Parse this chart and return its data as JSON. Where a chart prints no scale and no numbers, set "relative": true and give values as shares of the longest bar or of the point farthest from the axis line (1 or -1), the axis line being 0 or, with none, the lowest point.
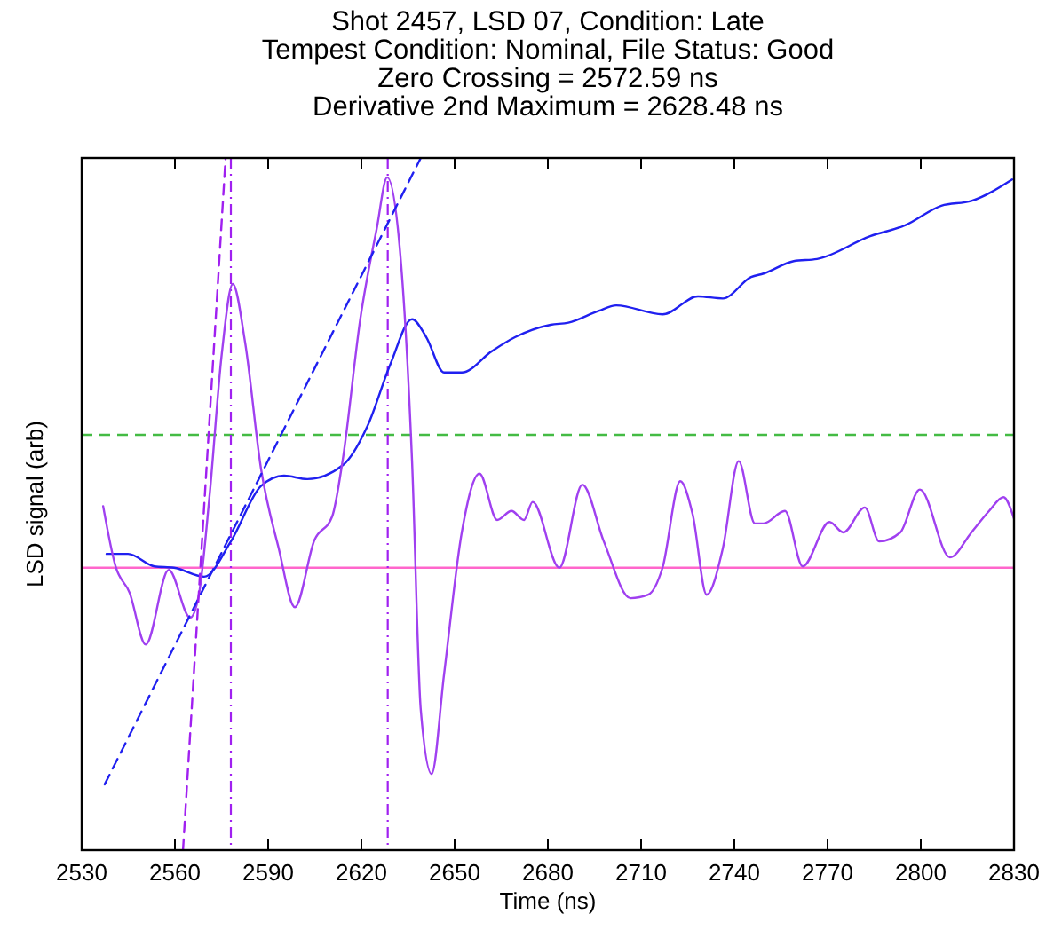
{
  "chart_data": {
    "type": "line",
    "title": "Shot 2457, LSD 07, Condition: Late",
    "subtitle": "Tempest Condition: Nominal, File Status: Good\nZero Crossing = 2572.59 ns\nDerivative 2nd Maximum = 2628.48 ns",
    "xlabel": "Time (ns)",
    "ylabel": "LSD signal (arb)",
    "relative": true,
    "xlim": [
      2530,
      2830
    ],
    "xticks": [
      2530,
      2560,
      2590,
      2620,
      2650,
      2680,
      2710,
      2740,
      2770,
      2800,
      2830
    ],
    "tick_labels": "x",
    "grid": false,
    "marker": "none",
    "series": [
      {
        "color": "#2020f0",
        "line_style": "solid",
        "x": [
          2538.0,
          2544.9,
          2553.4,
          2559.7,
          2569.4,
          2578.0,
          2587.7,
          2595.1,
          2602.6,
          2614.0,
          2622.0,
          2629.4,
          2636.3,
          2640.9,
          2646.6,
          2652.3,
          2662.0,
          2669.4,
          2680.9,
          2686.6,
          2696.3,
          2702.0,
          2716.9,
          2728.3,
          2736.3,
          2745.4,
          2749.4,
          2759.1,
          2766.6,
          2783.7,
          2795.1,
          2806.6,
          2816.3,
          2829.4
        ],
        "values": [
          0.428,
          0.428,
          0.41,
          0.408,
          0.395,
          0.446,
          0.526,
          0.541,
          0.536,
          0.556,
          0.613,
          0.703,
          0.767,
          0.741,
          0.69,
          0.69,
          0.721,
          0.741,
          0.759,
          0.762,
          0.779,
          0.787,
          0.774,
          0.8,
          0.797,
          0.828,
          0.833,
          0.851,
          0.854,
          0.887,
          0.903,
          0.931,
          0.938,
          0.969
        ]
      },
      {
        "color": "#a040f0",
        "line_style": "solid",
        "x": [
          2536.9,
          2540.9,
          2545.4,
          2550.6,
          2558.0,
          2564.9,
          2567.7,
          2571.1,
          2575.1,
          2578.6,
          2582.6,
          2587.7,
          2593.4,
          2598.6,
          2604.9,
          2610.6,
          2614.0,
          2619.7,
          2624.9,
          2628.3,
          2632.3,
          2636.3,
          2639.1,
          2642.6,
          2646.6,
          2652.3,
          2658.0,
          2663.7,
          2668.3,
          2672.3,
          2675.1,
          2683.7,
          2691.1,
          2698.0,
          2706.6,
          2712.3,
          2716.9,
          2722.6,
          2726.6,
          2731.1,
          2736.3,
          2741.4,
          2746.6,
          2749.4,
          2756.3,
          2762.0,
          2770.6,
          2775.1,
          2782.0,
          2786.6,
          2793.4,
          2799.7,
          2809.4,
          2816.3,
          2822.0,
          2826.6,
          2830.0
        ],
        "values": [
          0.497,
          0.41,
          0.372,
          0.297,
          0.405,
          0.336,
          0.369,
          0.51,
          0.718,
          0.818,
          0.733,
          0.551,
          0.436,
          0.351,
          0.448,
          0.482,
          0.564,
          0.769,
          0.897,
          0.972,
          0.872,
          0.562,
          0.203,
          0.11,
          0.254,
          0.459,
          0.544,
          0.477,
          0.49,
          0.477,
          0.503,
          0.408,
          0.528,
          0.446,
          0.364,
          0.369,
          0.408,
          0.533,
          0.485,
          0.369,
          0.436,
          0.562,
          0.472,
          0.472,
          0.49,
          0.41,
          0.474,
          0.459,
          0.495,
          0.446,
          0.459,
          0.521,
          0.423,
          0.459,
          0.49,
          0.51,
          0.479
        ]
      },
      {
        "color": "#2020f0",
        "line_style": "dashed",
        "x": [
          2537.4,
          2639.1
        ],
        "values": [
          0.095,
          1.0
        ]
      },
      {
        "color": "#a020f0",
        "line_style": "dashed",
        "x": [
          2562.6,
          2576.3
        ],
        "values": [
          0.0,
          1.0
        ]
      }
    ],
    "ref_lines": [
      {
        "axis": "y",
        "value": 0.6,
        "color": "#44bb44",
        "line_style": "dashed"
      },
      {
        "axis": "y",
        "value": 0.408,
        "color": "#ff66cc",
        "line_style": "solid"
      },
      {
        "axis": "x",
        "value": 2578,
        "color": "#a020f0",
        "line_style": "dashed"
      },
      {
        "axis": "x",
        "value": 2628.48,
        "color": "#a020f0",
        "line_style": "dashed"
      }
    ]
  }
}
